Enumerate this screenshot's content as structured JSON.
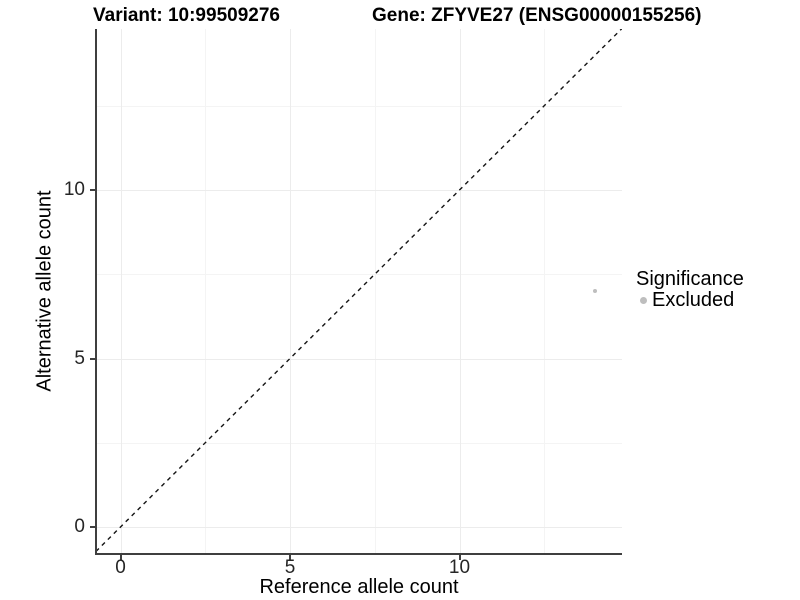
{
  "chart_data": {
    "type": "scatter",
    "titles": [
      "Variant: 10:99509276",
      "Gene: ZFYVE27 (ENSG00000155256)"
    ],
    "xlabel": "Reference allele count",
    "ylabel": "Alternative allele count",
    "xlim": [
      -0.7,
      14.8
    ],
    "ylim": [
      -0.75,
      14.8
    ],
    "x_ticks": [
      0,
      5,
      10
    ],
    "y_ticks": [
      0,
      5,
      10
    ],
    "x_minor_ticks": [
      2.5,
      7.5,
      12.5
    ],
    "y_minor_ticks": [
      2.5,
      7.5,
      12.5
    ],
    "grid": true,
    "legend_position": "right",
    "reference_line": {
      "type": "identity",
      "equation": "y = x",
      "style": "dashed",
      "color": "#141414"
    },
    "points": [
      {
        "x": 14,
        "y": 7,
        "significance": "Excluded",
        "color": "#bebebe"
      }
    ],
    "legend": {
      "title": "Significance",
      "entries": [
        {
          "label": "Excluded",
          "marker": "circle",
          "color": "#bebebe"
        }
      ]
    },
    "colors": {
      "axis_line": "#3f3f3f",
      "grid_major": "#ececec",
      "grid_minor": "#f4f4f4",
      "background": "#ffffff"
    }
  }
}
